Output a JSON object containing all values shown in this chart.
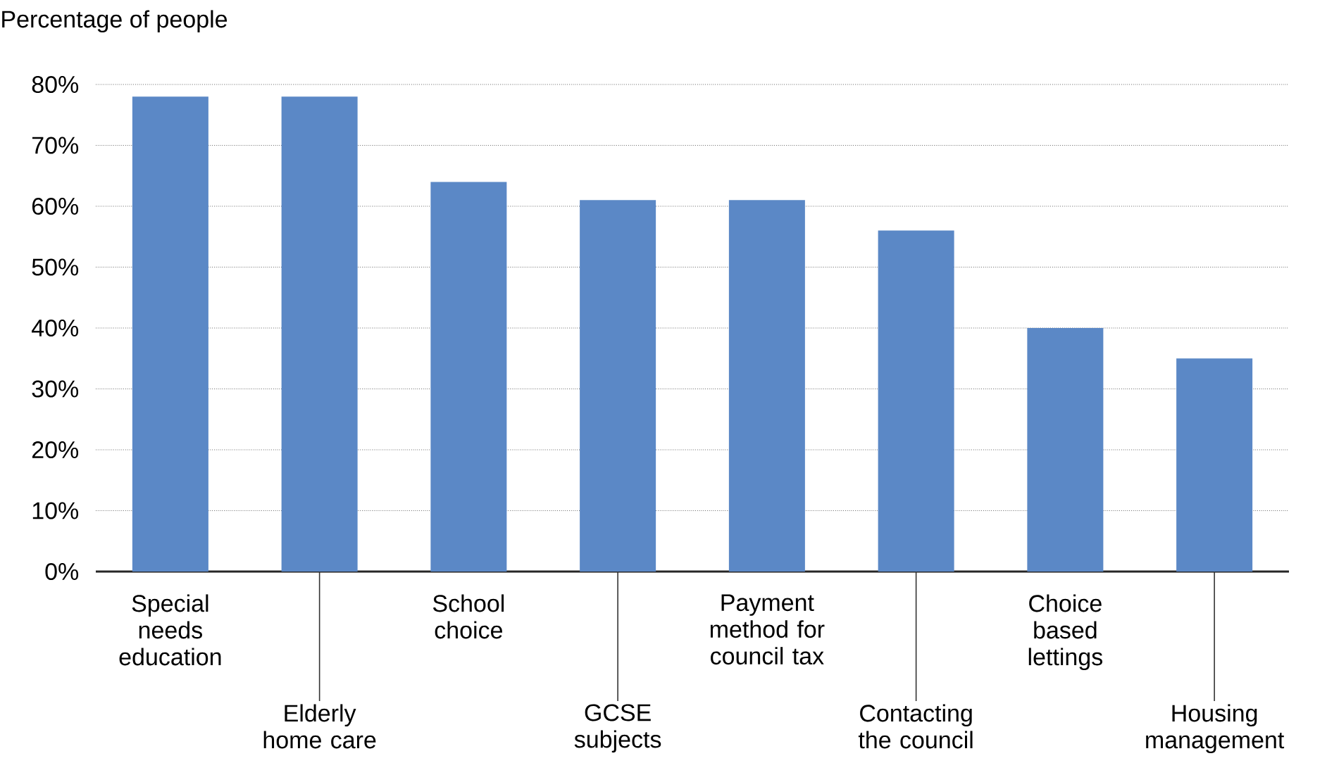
{
  "chart_data": {
    "type": "bar",
    "ylabel": "Percentage of people",
    "categories": [
      "Special needs education",
      "Elderly home care",
      "School choice",
      "GCSE subjects",
      "Payment method for council tax",
      "Contacting the council",
      "Choice based lettings",
      "Housing management"
    ],
    "values": [
      78,
      78,
      64,
      61,
      61,
      56,
      40,
      35
    ],
    "color": "#5b88c6",
    "ylim": [
      0,
      80
    ],
    "yticks": [
      {
        "value": 0,
        "label": "0%"
      },
      {
        "value": 10,
        "label": "10%"
      },
      {
        "value": 20,
        "label": "20%"
      },
      {
        "value": 30,
        "label": "30%"
      },
      {
        "value": 40,
        "label": "40%"
      },
      {
        "value": 50,
        "label": "50%"
      },
      {
        "value": 60,
        "label": "60%"
      },
      {
        "value": 70,
        "label": "70%"
      },
      {
        "value": 80,
        "label": "80%"
      }
    ],
    "grid": "y"
  }
}
